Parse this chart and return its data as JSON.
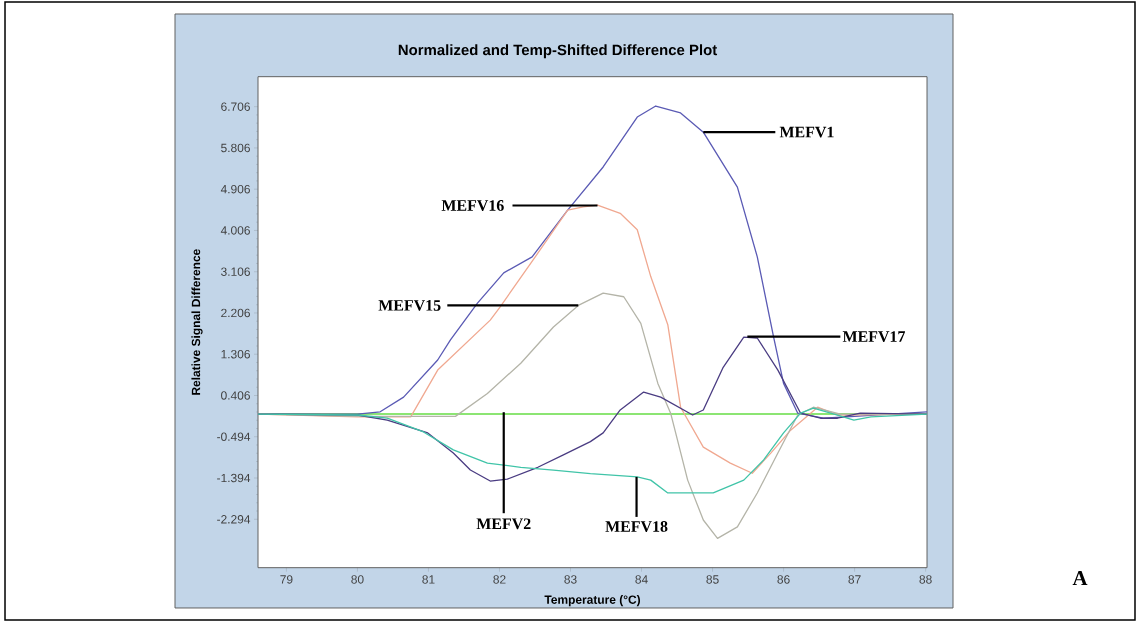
{
  "chart_data": {
    "type": "line",
    "title": "Normalized and Temp-Shifted Difference Plot",
    "xlabel": "Temperature (°C)",
    "ylabel": "Relative Signal Difference",
    "xlim": [
      78.6,
      88.02
    ],
    "ylim": [
      -3.35,
      7.36
    ],
    "xticks": [
      79,
      80,
      81,
      82,
      83,
      84,
      85,
      86,
      87,
      88
    ],
    "yticks": [
      -2.294,
      -1.394,
      -0.494,
      0.406,
      1.306,
      2.206,
      3.106,
      4.006,
      4.906,
      5.806,
      6.706
    ],
    "series": [
      {
        "color": "#5a5ab4",
        "x": [
          78.6,
          80.0,
          80.32,
          80.65,
          81.13,
          81.31,
          81.69,
          82.06,
          82.46,
          82.96,
          83.46,
          83.94,
          84.2,
          84.55,
          84.87,
          85.35,
          85.63,
          85.86,
          86.0,
          86.2,
          86.56,
          87.0,
          87.5,
          88.02
        ],
        "values": [
          0.0,
          0.0,
          0.05,
          0.37,
          1.18,
          1.62,
          2.42,
          3.08,
          3.43,
          4.45,
          5.39,
          6.48,
          6.72,
          6.57,
          6.15,
          4.95,
          3.43,
          1.68,
          0.67,
          0.02,
          -0.09,
          -0.05,
          0.0,
          0.05
        ]
      },
      {
        "color": "#f0a890",
        "x": [
          78.6,
          80.0,
          80.75,
          81.13,
          81.87,
          82.01,
          82.54,
          82.96,
          83.18,
          83.38,
          83.7,
          83.94,
          84.13,
          84.37,
          84.55,
          84.87,
          85.25,
          85.56,
          85.82,
          86.1,
          86.24,
          86.48,
          86.76,
          88.02
        ],
        "values": [
          0.0,
          -0.06,
          -0.06,
          0.96,
          2.05,
          2.34,
          3.51,
          4.45,
          4.52,
          4.56,
          4.38,
          4.02,
          3.0,
          1.95,
          0.15,
          -0.72,
          -1.07,
          -1.29,
          -0.85,
          -0.35,
          null,
          0.15,
          -0.02,
          0.0
        ]
      },
      {
        "color": "#b4b4a8",
        "x": [
          78.6,
          80.0,
          81.38,
          81.83,
          82.3,
          82.76,
          83.11,
          83.46,
          83.75,
          83.99,
          84.23,
          84.41,
          84.65,
          84.87,
          85.07,
          85.35,
          85.63,
          85.92,
          86.2,
          86.42,
          86.8,
          88.02
        ],
        "values": [
          0.0,
          -0.05,
          -0.05,
          0.45,
          1.11,
          1.9,
          2.37,
          2.64,
          2.56,
          1.98,
          0.67,
          0.02,
          -1.44,
          -2.31,
          -2.71,
          -2.46,
          -1.72,
          -0.85,
          -0.02,
          0.15,
          0.0,
          0.0
        ]
      },
      {
        "color": "#4a3c82",
        "x": [
          78.6,
          80.0,
          80.42,
          80.99,
          81.35,
          81.59,
          81.87,
          82.11,
          82.54,
          82.9,
          83.28,
          83.46,
          83.7,
          84.03,
          84.27,
          84.72,
          84.87,
          85.15,
          85.44,
          85.63,
          85.92,
          86.24,
          86.52,
          86.76,
          87.08,
          88.02
        ],
        "values": [
          0.0,
          -0.02,
          -0.13,
          -0.41,
          -0.85,
          -1.22,
          -1.46,
          -1.42,
          -1.16,
          -0.89,
          -0.6,
          -0.41,
          0.09,
          0.48,
          0.37,
          -0.02,
          0.09,
          1.02,
          1.68,
          1.66,
          0.96,
          0.02,
          -0.09,
          -0.09,
          0.02,
          0.0
        ]
      },
      {
        "color": "#40c4a8",
        "x": [
          78.6,
          80.0,
          80.42,
          80.93,
          81.35,
          81.83,
          82.3,
          82.76,
          83.28,
          83.94,
          84.13,
          84.37,
          85.01,
          85.44,
          85.72,
          86.0,
          86.24,
          86.42,
          86.76,
          86.99,
          87.23,
          88.02
        ],
        "values": [
          0.0,
          -0.02,
          -0.09,
          -0.39,
          -0.78,
          -1.07,
          -1.16,
          -1.22,
          -1.3,
          -1.37,
          -1.44,
          -1.72,
          -1.72,
          -1.44,
          -1.0,
          -0.41,
          0.02,
          0.13,
          -0.02,
          -0.13,
          -0.06,
          0.0
        ]
      }
    ],
    "ref_lines": [
      {
        "axis": "y",
        "value": 0,
        "color": "#66dd44"
      }
    ],
    "annotations": [
      {
        "text": "MEFV1",
        "x": 84.87,
        "y": 6.15
      },
      {
        "text": "MEFV16",
        "x": 83.38,
        "y": 4.55
      },
      {
        "text": "MEFV15",
        "x": 83.11,
        "y": 2.37
      },
      {
        "text": "MEFV17",
        "x": 85.49,
        "y": 1.69
      },
      {
        "text": "MEFV2",
        "x": 82.06,
        "y": -1.42
      },
      {
        "text": "MEFV18",
        "x": 83.93,
        "y": -1.37
      },
      "A"
    ]
  }
}
